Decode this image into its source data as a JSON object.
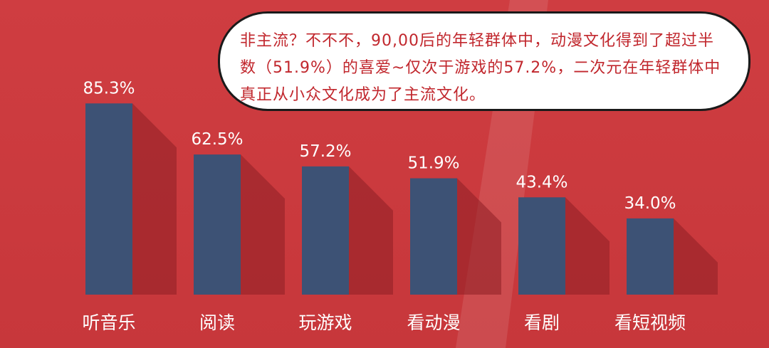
{
  "colors": {
    "background": "#c9383c",
    "bar": "#3d5275",
    "shadow": "#8e1f24",
    "bubble_text": "#c1272d",
    "label": "#ffffff"
  },
  "callout": {
    "text": "非主流？不不不，90,00后的年轻群体中，动漫文化得到了超过半数（51.9%）的喜爱~仅次于游戏的57.2%，二次元在年轻群体中真正从小众文化成为了主流文化。"
  },
  "chart_data": {
    "type": "bar",
    "categories": [
      "听音乐",
      "阅读",
      "玩游戏",
      "看动漫",
      "看剧",
      "看短视频"
    ],
    "values": [
      85.3,
      62.5,
      57.2,
      51.9,
      43.4,
      34.0
    ],
    "value_labels": [
      "85.3%",
      "62.5%",
      "57.2%",
      "51.9%",
      "43.4%",
      "34.0%"
    ],
    "unit": "%",
    "ylim": [
      0,
      100
    ],
    "grid": false,
    "legend": "none"
  }
}
